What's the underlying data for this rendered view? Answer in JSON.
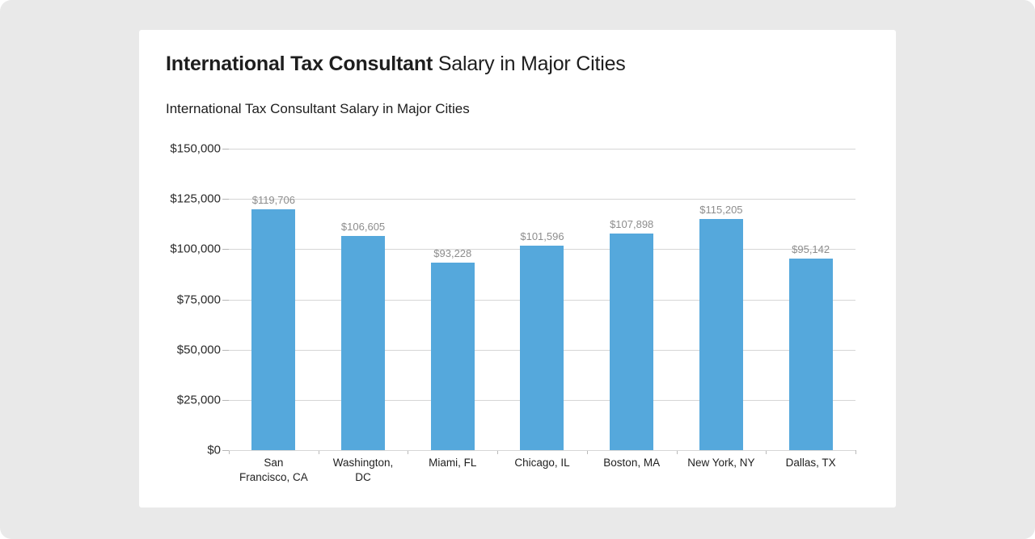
{
  "page": {
    "background_color": "#e9e9e9",
    "card_background": "#ffffff"
  },
  "header": {
    "title_bold": "International Tax Consultant",
    "title_regular": " Salary in Major Cities"
  },
  "chart_data": {
    "type": "bar",
    "title": "International Tax Consultant Salary in Major Cities",
    "categories": [
      "San Francisco, CA",
      "Washington, DC",
      "Miami, FL",
      "Chicago, IL",
      "Boston, MA",
      "New York, NY",
      "Dallas, TX"
    ],
    "values": [
      119706,
      106605,
      93228,
      101596,
      107898,
      115205,
      95142
    ],
    "value_labels": [
      "$119,706",
      "$106,605",
      "$93,228",
      "$101,596",
      "$107,898",
      "$115,205",
      "$95,142"
    ],
    "y_tick_labels": [
      "$150,000",
      "$125,000",
      "$100,000",
      "$75,000",
      "$50,000",
      "$25,000",
      "$0"
    ],
    "y_tick_values": [
      150000,
      125000,
      100000,
      75000,
      50000,
      25000,
      0
    ],
    "ylim": [
      0,
      150000
    ],
    "xlabel": "",
    "ylabel": "",
    "grid": true,
    "legend": false,
    "bar_color": "#55a8dc",
    "gridline_color": "#d6d6d6",
    "tick_color": "#b5b5b5",
    "value_label_color": "#8d8d8d",
    "axis_label_color": "#2a2a2a"
  }
}
